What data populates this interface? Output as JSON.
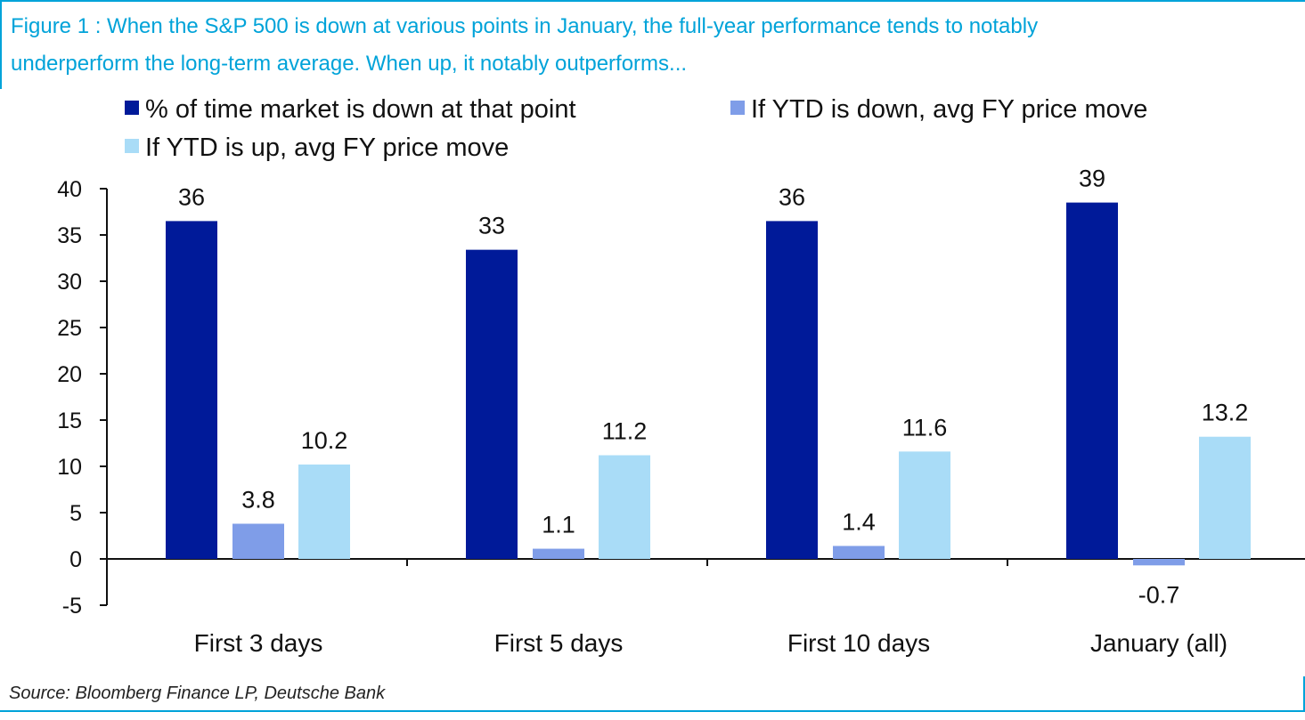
{
  "figure": {
    "title_line1": "Figure 1 : When the S&P 500 is down at various points in January, the full-year performance tends to notably",
    "title_line2": "underperform the long-term average. When up, it notably outperforms...",
    "source": "Source: Bloomberg Finance LP, Deutsche Bank"
  },
  "colors": {
    "title": "#00a3d9",
    "series": [
      "#001a99",
      "#7f9de8",
      "#a9dcf7"
    ]
  },
  "chart_data": {
    "type": "bar",
    "categories": [
      "First 3 days",
      "First 5 days",
      "First 10 days",
      "January (all)"
    ],
    "series": [
      {
        "name": "% of time market is down at that point",
        "values": [
          36.5,
          33.4,
          36.5,
          38.5
        ],
        "labels": [
          "36",
          "33",
          "36",
          "39"
        ]
      },
      {
        "name": "If YTD is down, avg FY price move",
        "values": [
          3.8,
          1.1,
          1.4,
          -0.7
        ],
        "labels": [
          "3.8",
          "1.1",
          "1.4",
          "-0.7"
        ]
      },
      {
        "name": "If YTD is up, avg FY price move",
        "values": [
          10.2,
          11.2,
          11.6,
          13.2
        ],
        "labels": [
          "10.2",
          "11.2",
          "11.6",
          "13.2"
        ]
      }
    ],
    "yticks": [
      "40",
      "35",
      "30",
      "25",
      "20",
      "15",
      "10",
      "5",
      "0",
      "-5"
    ],
    "ylim": [
      -5,
      40
    ],
    "grid": false,
    "legend_position": "top"
  }
}
